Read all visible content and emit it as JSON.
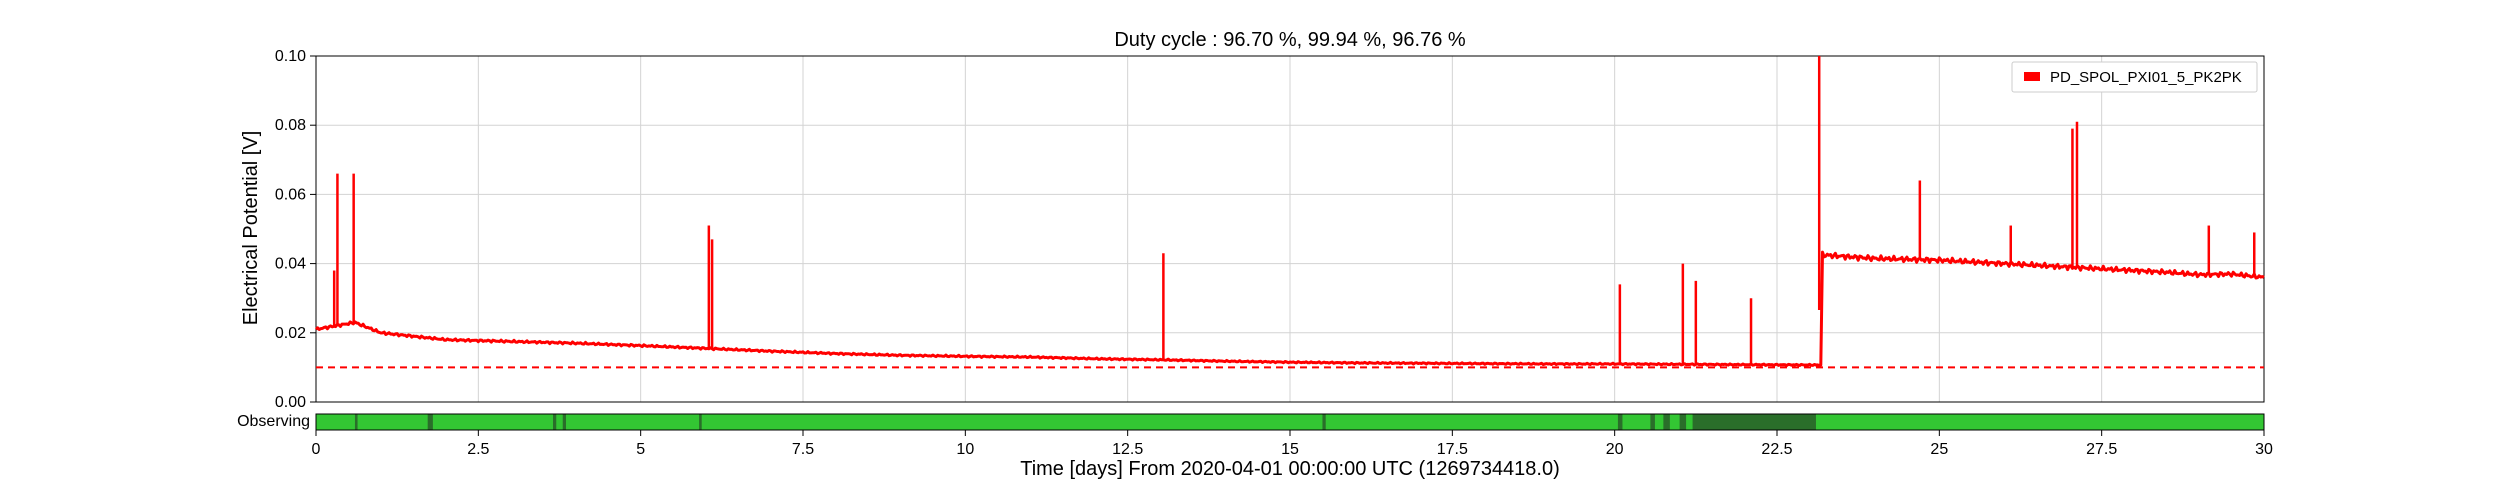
{
  "chart_data": {
    "type": "line",
    "title": "Duty cycle : 96.70 %, 99.94 %, 96.76 %",
    "xlabel": "Time [days] From 2020-04-01 00:00:00 UTC (1269734418.0)",
    "ylabel": "Electrical Potential [V]",
    "xlim": [
      0,
      30
    ],
    "ylim": [
      0,
      0.1
    ],
    "x_ticks": [
      0,
      2.5,
      5,
      7.5,
      10,
      12.5,
      15,
      17.5,
      20,
      22.5,
      25,
      27.5,
      30
    ],
    "x_tick_labels": [
      "0",
      "2.5",
      "5",
      "7.5",
      "10",
      "12.5",
      "15",
      "17.5",
      "20",
      "22.5",
      "25",
      "27.5",
      "30"
    ],
    "y_ticks": [
      0,
      0.02,
      0.04,
      0.06,
      0.08,
      0.1
    ],
    "y_tick_labels": [
      "0.00",
      "0.02",
      "0.04",
      "0.06",
      "0.08",
      "0.10"
    ],
    "grid": true,
    "legend": {
      "position": "top-right",
      "entries": [
        "PD_SPOL_PXI01_5_PK2PK"
      ]
    },
    "series": [
      {
        "name": "PD_SPOL_PXI01_5_PK2PK",
        "color": "#ff0000",
        "x": [
          0,
          0.3,
          0.6,
          1.0,
          2.0,
          3.0,
          4.0,
          5.0,
          6.0,
          7.0,
          8.0,
          9.0,
          10.0,
          11.0,
          12.0,
          13.0,
          14.0,
          15.0,
          16.0,
          17.0,
          18.0,
          19.0,
          20.0,
          21.0,
          22.0,
          23.1,
          23.2,
          24.0,
          25.0,
          26.0,
          27.0,
          27.5,
          28.0,
          28.5,
          29.0,
          29.5,
          30.0
        ],
        "values": [
          0.021,
          0.022,
          0.023,
          0.02,
          0.018,
          0.0175,
          0.017,
          0.0163,
          0.0155,
          0.0147,
          0.014,
          0.0135,
          0.0132,
          0.013,
          0.0125,
          0.0122,
          0.0118,
          0.0115,
          0.0113,
          0.0112,
          0.0111,
          0.011,
          0.011,
          0.0109,
          0.0108,
          0.0107,
          0.0425,
          0.0415,
          0.041,
          0.04,
          0.039,
          0.0385,
          0.038,
          0.0375,
          0.0368,
          0.037,
          0.036
        ]
      }
    ],
    "spikes": [
      {
        "x": 0.28,
        "value": 0.038
      },
      {
        "x": 0.33,
        "value": 0.066
      },
      {
        "x": 0.58,
        "value": 0.066
      },
      {
        "x": 6.05,
        "value": 0.051
      },
      {
        "x": 6.1,
        "value": 0.047
      },
      {
        "x": 13.05,
        "value": 0.043
      },
      {
        "x": 20.08,
        "value": 0.034
      },
      {
        "x": 21.05,
        "value": 0.04
      },
      {
        "x": 21.25,
        "value": 0.035
      },
      {
        "x": 22.1,
        "value": 0.03
      },
      {
        "x": 23.15,
        "value": 0.1
      },
      {
        "x": 24.7,
        "value": 0.064
      },
      {
        "x": 26.1,
        "value": 0.051
      },
      {
        "x": 27.05,
        "value": 0.079
      },
      {
        "x": 27.12,
        "value": 0.081
      },
      {
        "x": 29.15,
        "value": 0.051
      },
      {
        "x": 29.85,
        "value": 0.049
      }
    ],
    "threshold": {
      "value": 0.01,
      "style": "dashed",
      "color": "#ff0000"
    },
    "observing": {
      "label": "Observing",
      "on_color": "#33c633",
      "off_color": "#2a6e2a",
      "off_intervals": [
        [
          0.6,
          0.64
        ],
        [
          1.72,
          1.8
        ],
        [
          3.65,
          3.7
        ],
        [
          3.8,
          3.85
        ],
        [
          5.9,
          5.94
        ],
        [
          15.5,
          15.55
        ],
        [
          20.05,
          20.12
        ],
        [
          20.55,
          20.62
        ],
        [
          20.75,
          20.85
        ],
        [
          21.0,
          21.1
        ],
        [
          21.2,
          23.1
        ]
      ]
    }
  }
}
